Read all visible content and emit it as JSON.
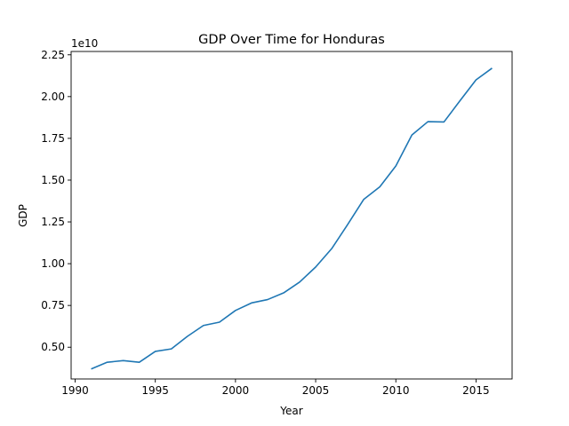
{
  "chart_data": {
    "type": "line",
    "title": "GDP Over Time for Honduras",
    "xlabel": "Year",
    "ylabel": "GDP",
    "offset_label": "1e10",
    "xlim": [
      1989.75,
      2017.25
    ],
    "ylim": [
      3.1,
      2.27
    ],
    "y_scale_note": "values in units of 1e10",
    "xticks": [
      1990,
      1995,
      2000,
      2005,
      2010,
      2015
    ],
    "yticks": [
      0.5,
      0.75,
      1.0,
      1.25,
      1.5,
      1.75,
      2.0,
      2.25
    ],
    "ytick_labels": [
      "0.50",
      "0.75",
      "1.00",
      "1.25",
      "1.50",
      "1.75",
      "2.00",
      "2.25"
    ],
    "grid": false,
    "line_color": "#1f77b4",
    "series": [
      {
        "x": [
          1991,
          1992,
          1993,
          1994,
          1995,
          1996,
          1997,
          1998,
          1999,
          2000,
          2001,
          2002,
          2003,
          2004,
          2005,
          2006,
          2007,
          2008,
          2009,
          2010,
          2011,
          2012,
          2013,
          2014,
          2015,
          2016
        ],
        "values": [
          0.37,
          0.41,
          0.42,
          0.41,
          0.475,
          0.49,
          0.565,
          0.63,
          0.65,
          0.72,
          0.765,
          0.785,
          0.825,
          0.89,
          0.98,
          1.09,
          1.235,
          1.385,
          1.46,
          1.585,
          1.77,
          1.85,
          1.848,
          1.975,
          2.1,
          2.17
        ]
      }
    ]
  }
}
